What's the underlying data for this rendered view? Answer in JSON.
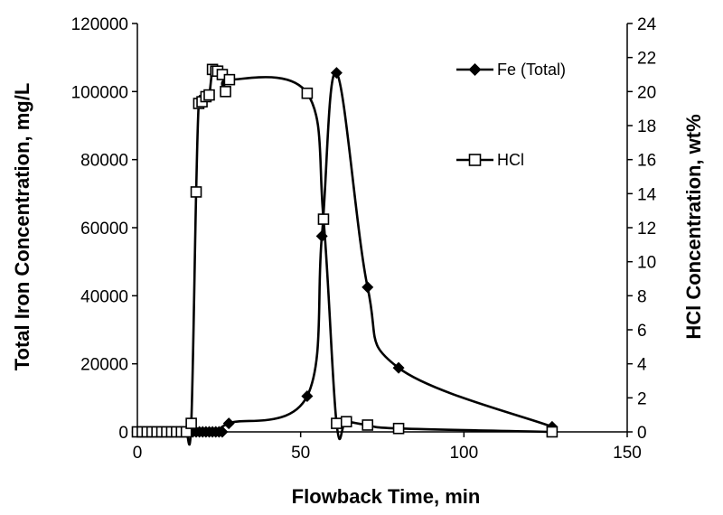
{
  "chart_data": {
    "type": "line",
    "xlabel": "Flowback Time, min",
    "ylabel": "Total Iron Concentration, mg/L",
    "y2label": "HCl Concentration, wt%",
    "xlim": [
      0,
      150
    ],
    "ylim": [
      0,
      120000
    ],
    "y2lim": [
      0,
      24
    ],
    "x_ticks": [
      "0",
      "50",
      "100",
      "150"
    ],
    "y_ticks": [
      "0",
      "20000",
      "40000",
      "60000",
      "80000",
      "100000",
      "120000"
    ],
    "y2_ticks": [
      "0",
      "2",
      "4",
      "6",
      "8",
      "10",
      "12",
      "14",
      "16",
      "18",
      "20",
      "22",
      "24"
    ],
    "grid": false,
    "legend": "inside-right",
    "series": [
      {
        "name": "Fe (Total)",
        "axis": "left",
        "marker": "filled-diamond",
        "color": "#000000",
        "points": [
          [
            0,
            0
          ],
          [
            1,
            0
          ],
          [
            2,
            0
          ],
          [
            3,
            0
          ],
          [
            4,
            0
          ],
          [
            5,
            0
          ],
          [
            6,
            0
          ],
          [
            7,
            0
          ],
          [
            8,
            0
          ],
          [
            9,
            0
          ],
          [
            10,
            0
          ],
          [
            11,
            0
          ],
          [
            12,
            0
          ],
          [
            13,
            0
          ],
          [
            14,
            0
          ],
          [
            15,
            0
          ],
          [
            16,
            0
          ],
          [
            17,
            0
          ],
          [
            18,
            0
          ],
          [
            19,
            0
          ],
          [
            20,
            0
          ],
          [
            21,
            0
          ],
          [
            22,
            0
          ],
          [
            23,
            0
          ],
          [
            24,
            0
          ],
          [
            25,
            0
          ],
          [
            26,
            0
          ],
          [
            28,
            2500
          ],
          [
            52,
            10500
          ],
          [
            56.5,
            57500
          ],
          [
            61,
            105500
          ],
          [
            70.5,
            42500
          ],
          [
            80,
            18800
          ],
          [
            127,
            1500
          ]
        ]
      },
      {
        "name": "HCl",
        "axis": "right",
        "marker": "open-square",
        "color": "#000000",
        "points": [
          [
            0,
            0
          ],
          [
            1.5,
            0
          ],
          [
            3,
            0
          ],
          [
            4.5,
            0
          ],
          [
            6,
            0
          ],
          [
            7.5,
            0
          ],
          [
            9,
            0
          ],
          [
            10.5,
            0
          ],
          [
            12,
            0
          ],
          [
            13.5,
            0
          ],
          [
            15,
            0
          ],
          [
            16.5,
            0.5
          ],
          [
            18,
            14.1
          ],
          [
            18.8,
            19.3
          ],
          [
            19.8,
            19.4
          ],
          [
            21,
            19.7
          ],
          [
            22,
            19.8
          ],
          [
            23,
            21.3
          ],
          [
            24,
            21.2
          ],
          [
            24.6,
            21.2
          ],
          [
            26,
            21.0
          ],
          [
            27,
            20.0
          ],
          [
            28.2,
            20.7
          ],
          [
            52,
            19.9
          ],
          [
            57,
            12.5
          ],
          [
            61,
            0.5
          ],
          [
            64,
            0.6
          ],
          [
            70.5,
            0.4
          ],
          [
            80,
            0.2
          ],
          [
            127,
            0.0
          ]
        ]
      }
    ]
  }
}
